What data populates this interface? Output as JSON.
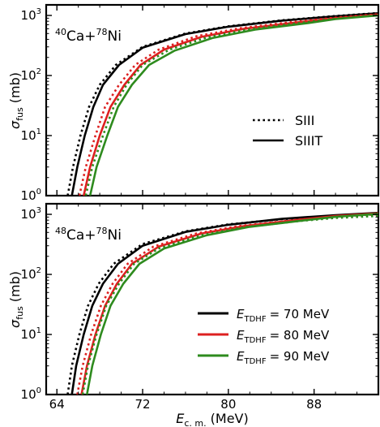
{
  "chart_data": [
    {
      "type": "line",
      "annotation": {
        "base": "Ca+",
        "sup1": "40",
        "sup2": "78",
        "suffix": "Ni"
      },
      "ylabel": {
        "symbol": "σ",
        "sub": "fus",
        "unit": "(mb)"
      },
      "yscale": "log",
      "ylim": [
        1,
        1500
      ],
      "xlim": [
        63,
        94
      ],
      "y_ticks": [
        {
          "value": 1,
          "base": "10",
          "exp": "0"
        },
        {
          "value": 10,
          "base": "10",
          "exp": "1"
        },
        {
          "value": 100,
          "base": "10",
          "exp": "2"
        },
        {
          "value": 1000,
          "base": "10",
          "exp": "3"
        }
      ],
      "legend": {
        "placement": "center-right",
        "entries": [
          {
            "label": "SIII",
            "style": "dotted",
            "color": "#000000"
          },
          {
            "label": "SIIIT",
            "style": "solid",
            "color": "#000000"
          }
        ]
      },
      "series": [
        {
          "group": "70 MeV",
          "style": "dotted",
          "color": "#000000",
          "x": [
            65.0,
            65.5,
            66.2,
            67.0,
            68.0,
            69.5,
            72,
            76,
            80,
            85,
            90,
            94
          ],
          "y": [
            1,
            3,
            10,
            30,
            70,
            150,
            300,
            500,
            660,
            830,
            980,
            1100
          ]
        },
        {
          "group": "70 MeV",
          "style": "solid",
          "color": "#000000",
          "x": [
            65.4,
            65.9,
            66.6,
            67.4,
            68.3,
            69.8,
            72,
            76,
            80,
            85,
            90,
            94
          ],
          "y": [
            1,
            3,
            10,
            30,
            70,
            150,
            290,
            490,
            650,
            820,
            970,
            1090
          ]
        },
        {
          "group": "80 MeV",
          "style": "dotted",
          "color": "#dd2020",
          "x": [
            66.1,
            66.7,
            67.6,
            68.5,
            69.8,
            71.3,
            73.5,
            77,
            81,
            86,
            90,
            94
          ],
          "y": [
            1,
            3,
            10,
            30,
            70,
            150,
            270,
            450,
            610,
            780,
            920,
            1050
          ]
        },
        {
          "group": "80 MeV",
          "style": "solid",
          "color": "#dd2020",
          "x": [
            66.5,
            67.1,
            68.0,
            69.0,
            70.3,
            71.8,
            74,
            77.5,
            81.5,
            86.5,
            90,
            94
          ],
          "y": [
            1,
            3,
            10,
            30,
            70,
            150,
            270,
            440,
            600,
            770,
            900,
            1030
          ]
        },
        {
          "group": "90 MeV",
          "style": "dotted",
          "color": "#2e8b1e",
          "x": [
            66.7,
            67.3,
            68.3,
            69.3,
            70.5,
            72.0,
            74.5,
            78,
            82,
            87,
            90,
            94
          ],
          "y": [
            1,
            3,
            10,
            30,
            70,
            150,
            270,
            430,
            590,
            760,
            880,
            1010
          ]
        },
        {
          "group": "90 MeV",
          "style": "solid",
          "color": "#2e8b1e",
          "x": [
            67.1,
            67.7,
            68.7,
            69.7,
            71.0,
            72.6,
            75,
            78.5,
            82.5,
            87.5,
            90,
            94
          ],
          "y": [
            1,
            3,
            10,
            30,
            70,
            150,
            260,
            420,
            580,
            750,
            870,
            1000
          ]
        }
      ]
    },
    {
      "type": "line",
      "annotation": {
        "base": "Ca+",
        "sup1": "48",
        "sup2": "78",
        "suffix": "Ni"
      },
      "ylabel": {
        "symbol": "σ",
        "sub": "fus",
        "unit": "(mb)"
      },
      "xlabel": {
        "symbol": "E",
        "sub": "c. m.",
        "unit": "(MeV)"
      },
      "yscale": "log",
      "ylim": [
        1,
        1500
      ],
      "xlim": [
        63,
        94
      ],
      "x_ticks": [
        "64",
        "72",
        "80",
        "88"
      ],
      "x_tick_values": [
        64,
        72,
        80,
        88
      ],
      "y_ticks": [
        {
          "value": 1,
          "base": "10",
          "exp": "0"
        },
        {
          "value": 10,
          "base": "10",
          "exp": "1"
        },
        {
          "value": 100,
          "base": "10",
          "exp": "2"
        },
        {
          "value": 1000,
          "base": "10",
          "exp": "3"
        }
      ],
      "legend": {
        "placement": "bottom-right",
        "entries": [
          {
            "symbol": "E",
            "sub": "TDHF",
            "value": "= 70 MeV",
            "color": "#000000"
          },
          {
            "symbol": "E",
            "sub": "TDHF",
            "value": "= 80 MeV",
            "color": "#dd2020"
          },
          {
            "symbol": "E",
            "sub": "TDHF",
            "value": "= 90 MeV",
            "color": "#2e8b1e"
          }
        ]
      },
      "series": [
        {
          "group": "70 MeV",
          "style": "dotted",
          "color": "#000000",
          "x": [
            65.0,
            65.4,
            66.1,
            66.9,
            67.9,
            69.3,
            72,
            76,
            80,
            85,
            90,
            94
          ],
          "y": [
            1,
            3,
            10,
            30,
            70,
            150,
            320,
            520,
            680,
            830,
            950,
            1020
          ]
        },
        {
          "group": "70 MeV",
          "style": "solid",
          "color": "#000000",
          "x": [
            65.4,
            65.8,
            66.5,
            67.3,
            68.3,
            69.7,
            72,
            76,
            80,
            85,
            90,
            94
          ],
          "y": [
            1,
            3,
            10,
            30,
            70,
            150,
            300,
            510,
            670,
            840,
            970,
            1060
          ]
        },
        {
          "group": "80 MeV",
          "style": "dotted",
          "color": "#dd2020",
          "x": [
            65.9,
            66.4,
            67.2,
            68.1,
            69.2,
            70.6,
            73,
            77,
            81,
            86,
            90,
            94
          ],
          "y": [
            1,
            3,
            10,
            30,
            70,
            150,
            290,
            480,
            640,
            800,
            920,
            1000
          ]
        },
        {
          "group": "80 MeV",
          "style": "solid",
          "color": "#dd2020",
          "x": [
            66.3,
            66.8,
            67.6,
            68.5,
            69.6,
            71.0,
            73.5,
            77.5,
            81.5,
            86.5,
            90,
            94
          ],
          "y": [
            1,
            3,
            10,
            30,
            70,
            150,
            290,
            480,
            640,
            810,
            940,
            1040
          ]
        },
        {
          "group": "90 MeV",
          "style": "dotted",
          "color": "#2e8b1e",
          "x": [
            66.4,
            66.9,
            67.7,
            68.6,
            69.8,
            71.2,
            73.5,
            77.5,
            81.5,
            86.5,
            90,
            94
          ],
          "y": [
            1,
            3,
            10,
            30,
            70,
            150,
            270,
            450,
            610,
            770,
            870,
            940
          ]
        },
        {
          "group": "90 MeV",
          "style": "solid",
          "color": "#2e8b1e",
          "x": [
            66.8,
            67.3,
            68.1,
            69.0,
            70.2,
            71.7,
            74,
            78,
            82,
            87,
            90,
            94
          ],
          "y": [
            1,
            3,
            10,
            30,
            70,
            150,
            270,
            450,
            620,
            790,
            910,
            1020
          ]
        }
      ]
    }
  ]
}
